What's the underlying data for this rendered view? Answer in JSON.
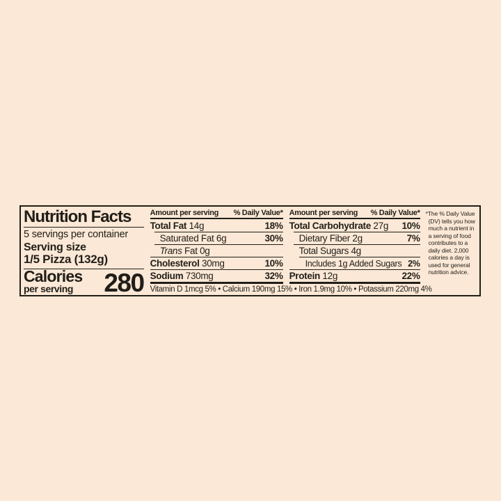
{
  "colors": {
    "background": "#fbe8d6",
    "text": "#211e18"
  },
  "nutrition_label": {
    "title": "Nutrition Facts",
    "servings_per_container": "5 servings per container",
    "serving_size_label": "Serving size",
    "serving_size_value": "1/5 Pizza (132g)",
    "calories_label": "Calories",
    "calories_sublabel": "per serving",
    "calories_value": "280",
    "column_header_left": "Amount per serving",
    "column_header_right": "% Daily Value*",
    "fat_column_rows": [
      {
        "name": "Total Fat",
        "amount": "14g",
        "dv": "18%",
        "emphasis": "bold",
        "indent": 0
      },
      {
        "name": "Saturated Fat",
        "amount": "6g",
        "dv": "30%",
        "emphasis": "normal",
        "indent": 1
      },
      {
        "name": "Trans",
        "name_suffix": " Fat",
        "amount": "0g",
        "dv": "",
        "emphasis": "italic",
        "indent": 1
      },
      {
        "name": "Cholesterol",
        "amount": "30mg",
        "dv": "10%",
        "emphasis": "bold",
        "indent": 0
      },
      {
        "name": "Sodium",
        "amount": "730mg",
        "dv": "32%",
        "emphasis": "bold",
        "indent": 0
      }
    ],
    "carb_column_rows": [
      {
        "name": "Total Carbohydrate",
        "amount": "27g",
        "dv": "10%",
        "emphasis": "bold",
        "indent": 0
      },
      {
        "name": "Dietary Fiber",
        "amount": "2g",
        "dv": "7%",
        "emphasis": "normal",
        "indent": 1
      },
      {
        "name": "Total Sugars",
        "amount": "4g",
        "dv": "",
        "emphasis": "normal",
        "indent": 1
      },
      {
        "name": "Includes 1g Added Sugars",
        "amount": "",
        "dv": "2%",
        "emphasis": "normal",
        "indent": 2
      },
      {
        "name": "Protein",
        "amount": "12g",
        "dv": "22%",
        "emphasis": "bold",
        "indent": 0
      }
    ],
    "micronutrients_line": "Vitamin D 1mcg 5% • Calcium 190mg 15% • Iron 1.9mg 10% • Potassium 220mg 4%",
    "footnote": "*The % Daily Value (DV) tells you how much a nutrient in a serving of food contributes to a daily diet. 2,000 calories a day is used for general nutrition advice."
  }
}
